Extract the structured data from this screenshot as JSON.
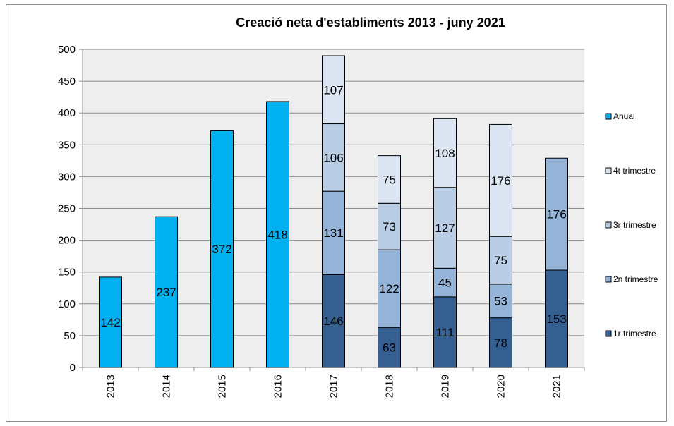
{
  "chart_data": {
    "type": "bar",
    "stacked": true,
    "title": "Creació neta d'establiments 2013 - juny 2021",
    "xlabel": "",
    "ylabel": "",
    "ylim": [
      0,
      500
    ],
    "yticks": [
      0,
      50,
      100,
      150,
      200,
      250,
      300,
      350,
      400,
      450,
      500
    ],
    "grid": true,
    "legend_position": "right",
    "categories": [
      "2013",
      "2014",
      "2015",
      "2016",
      "2017",
      "2018",
      "2019",
      "2020",
      "2021"
    ],
    "series": [
      {
        "name": "1r trimestre",
        "color": "#355f91",
        "values": [
          null,
          null,
          null,
          null,
          146,
          63,
          111,
          78,
          153
        ]
      },
      {
        "name": "2n trimestre",
        "color": "#95b3d7",
        "values": [
          null,
          null,
          null,
          null,
          131,
          122,
          45,
          53,
          176
        ]
      },
      {
        "name": "3r trimestre",
        "color": "#b9cde5",
        "values": [
          null,
          null,
          null,
          null,
          106,
          73,
          127,
          75,
          null
        ]
      },
      {
        "name": "4t trimestre",
        "color": "#dce6f2",
        "values": [
          null,
          null,
          null,
          null,
          107,
          75,
          108,
          176,
          null
        ]
      },
      {
        "name": "Anual",
        "color": "#00b0f0",
        "values": [
          142,
          237,
          372,
          418,
          null,
          null,
          null,
          null,
          null
        ]
      }
    ],
    "legend_order": [
      "Anual",
      "4t trimestre",
      "3r trimestre",
      "2n trimestre",
      "1r trimestre"
    ]
  }
}
